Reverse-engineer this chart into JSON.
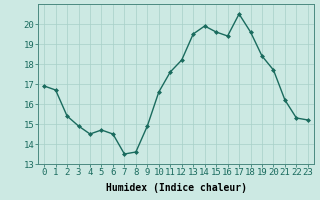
{
  "x": [
    0,
    1,
    2,
    3,
    4,
    5,
    6,
    7,
    8,
    9,
    10,
    11,
    12,
    13,
    14,
    15,
    16,
    17,
    18,
    19,
    20,
    21,
    22,
    23
  ],
  "y": [
    16.9,
    16.7,
    15.4,
    14.9,
    14.5,
    14.7,
    14.5,
    13.5,
    13.6,
    14.9,
    16.6,
    17.6,
    18.2,
    19.5,
    19.9,
    19.6,
    19.4,
    20.5,
    19.6,
    18.4,
    17.7,
    16.2,
    15.3,
    15.2
  ],
  "line_color": "#1a6b5e",
  "marker": "D",
  "marker_size": 2.0,
  "line_width": 1.0,
  "bg_color": "#cce9e3",
  "grid_color": "#a8d0c8",
  "xlabel": "Humidex (Indice chaleur)",
  "xlabel_fontsize": 7,
  "xtick_labels": [
    "0",
    "1",
    "2",
    "3",
    "4",
    "5",
    "6",
    "7",
    "8",
    "9",
    "10",
    "11",
    "12",
    "13",
    "14",
    "15",
    "16",
    "17",
    "18",
    "19",
    "20",
    "21",
    "22",
    "23"
  ],
  "ylim": [
    13,
    21
  ],
  "yticks": [
    13,
    14,
    15,
    16,
    17,
    18,
    19,
    20
  ],
  "tick_fontsize": 6.5
}
